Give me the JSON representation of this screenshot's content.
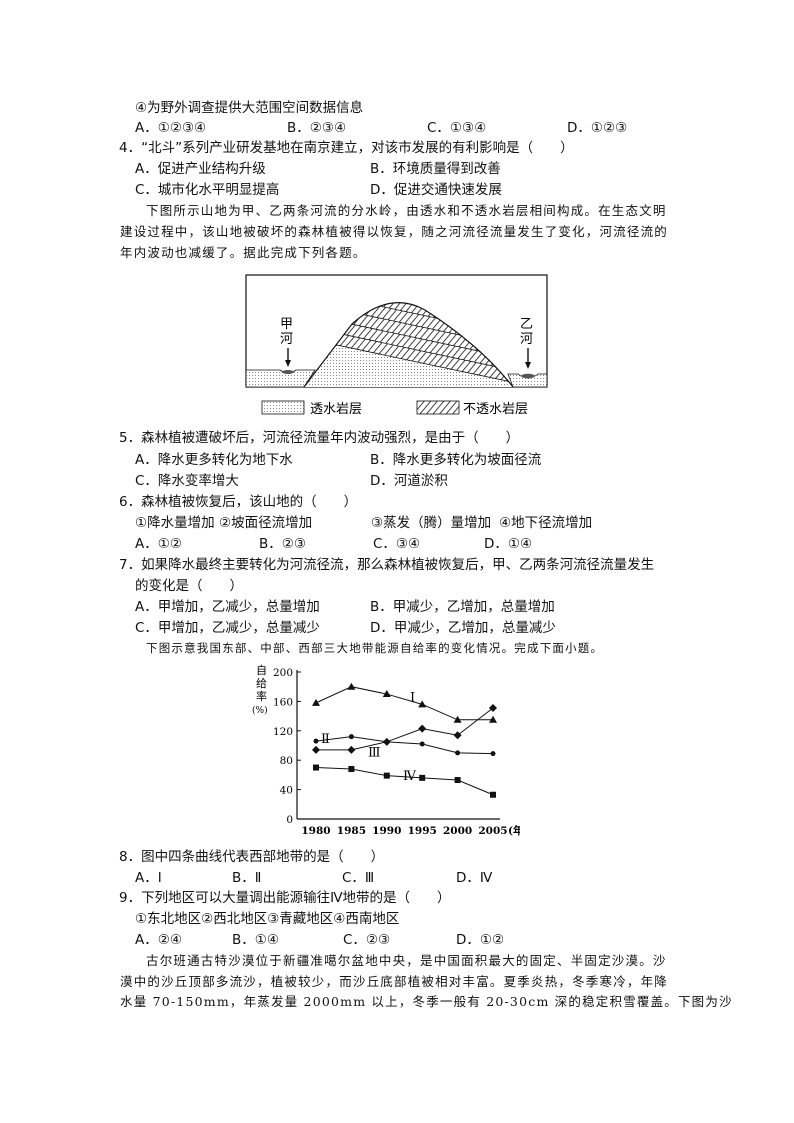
{
  "q3": {
    "item4": "④为野外调查提供大范围空间数据信息",
    "options": [
      "A．①②③④",
      "B．②③④",
      "C．①③④",
      "D．①②③"
    ]
  },
  "q4": {
    "stem": "4．“北斗”系列产业研发基地在南京建立，对该市发展的有利影响是（　　）",
    "options": [
      "A．促进产业结构升级",
      "B．环境质量得到改善",
      "C．城市化水平明显提高",
      "D．促进交通快速发展"
    ]
  },
  "passage1": [
    "下图所示山地为甲、乙两条河流的分水岭，由透水和不透水岩层相间构成。在生态文明",
    "建设过程中，该山地被破坏的森林植被得以恢复，随之河流径流量发生了变化，河流径流的",
    "年内波动也减缓了。据此完成下列各题。"
  ],
  "diagram": {
    "river_left": [
      "甲",
      "河"
    ],
    "river_right": [
      "乙",
      "河"
    ],
    "legend_permeable": "透水岩层",
    "legend_impermeable": "不透水岩层"
  },
  "q5": {
    "stem": "5．森林植被遭破坏后，河流径流量年内波动强烈，是由于（　　）",
    "options": [
      "A．降水更多转化为地下水",
      "B．降水更多转化为坡面径流",
      "C．降水变率增大",
      "D．河道淤积"
    ]
  },
  "q6": {
    "stem": "6．森林植被恢复后，该山地的（　　）",
    "items": [
      "①降水量增加",
      "②坡面径流增加",
      "③蒸发（腾）量增加",
      "④地下径流增加"
    ],
    "options": [
      "A．①②",
      "B．②③",
      "C．③④",
      "D．①④"
    ]
  },
  "q7": {
    "stem1": "7．如果降水最终主要转化为河流径流，那么森林植被恢复后，甲、乙两条河流径流量发生",
    "stem2": "的变化是（　　）",
    "options": [
      "A．甲增加，乙减少，总量增加",
      "B．甲减少，乙增加，总量增加",
      "C．甲增加，乙减少，总量减少",
      "D．甲减少，乙增加，总量减少"
    ]
  },
  "passage2": "下图示意我国东部、中部、西部三大地带能源自给率的变化情况。完成下面小题。",
  "chart_data": {
    "type": "line",
    "ylabel": [
      "自",
      "给",
      "率",
      "(%)"
    ],
    "xlabel": "(年份)",
    "x": [
      1980,
      1985,
      1990,
      1995,
      2000,
      2005
    ],
    "ylim": [
      0,
      200
    ],
    "yticks": [
      0,
      40,
      80,
      120,
      160,
      200
    ],
    "grid": false,
    "series": [
      {
        "name": "Ⅰ",
        "marker": "triangle",
        "values": [
          158,
          180,
          170,
          156,
          135,
          135
        ]
      },
      {
        "name": "Ⅱ",
        "marker": "circle",
        "values": [
          106,
          112,
          105,
          102,
          90,
          89
        ]
      },
      {
        "name": "Ⅲ",
        "marker": "diamond",
        "values": [
          94,
          94,
          105,
          123,
          114,
          151
        ]
      },
      {
        "name": "Ⅳ",
        "marker": "square",
        "values": [
          70,
          68,
          59,
          56,
          53,
          33
        ]
      }
    ]
  },
  "q8": {
    "stem": "8．图中四条曲线代表西部地带的是（　　）",
    "options": [
      "A．Ⅰ",
      "B．Ⅱ",
      "C．Ⅲ",
      "D．Ⅳ"
    ]
  },
  "q9": {
    "stem": "9．下列地区可以大量调出能源输往Ⅳ地带的是（　　）",
    "items": "①东北地区②西北地区③青藏地区④西南地区",
    "options": [
      "A．②④",
      "B．①④",
      "C．②③",
      "D．①②"
    ]
  },
  "passage3": [
    "古尔班通古特沙漠位于新疆准噶尔盆地中央，是中国面积最大的固定、半固定沙漠。沙",
    "漠中的沙丘顶部多流沙，植被较少，而沙丘底部植被相对丰富。夏季炎热，冬季寒冷，年降",
    "水量 70-150mm，年蒸发量 2000mm 以上，冬季一般有 20-30cm 深的稳定积雪覆盖。下图为沙"
  ]
}
